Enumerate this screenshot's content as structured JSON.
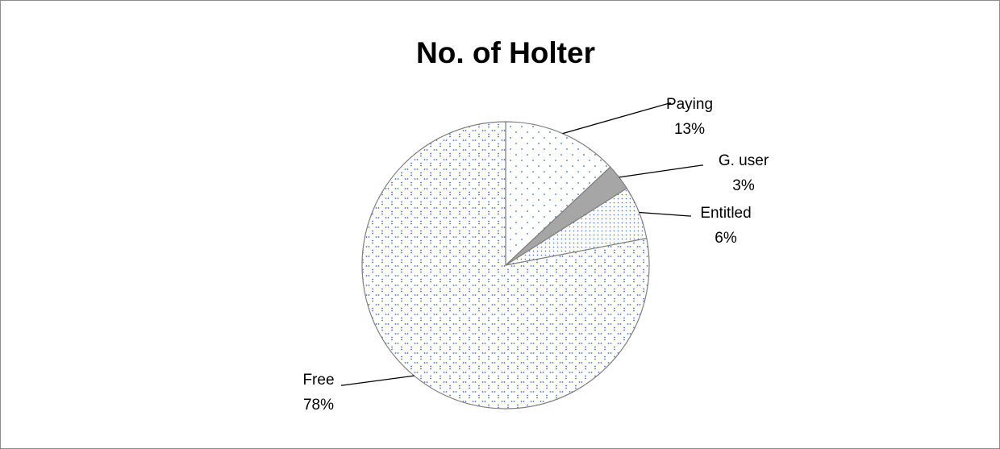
{
  "chart_data": {
    "type": "pie",
    "title": "No. of Holter",
    "categories": [
      "Paying",
      "G. user",
      "Entitled",
      "Free"
    ],
    "values": [
      13,
      3,
      6,
      78
    ],
    "value_labels": [
      "13%",
      "3%",
      "6%",
      "78%"
    ],
    "colors": [
      "#ffffff",
      "#a6a6a6",
      "#ffffff",
      "#ffffff"
    ]
  }
}
